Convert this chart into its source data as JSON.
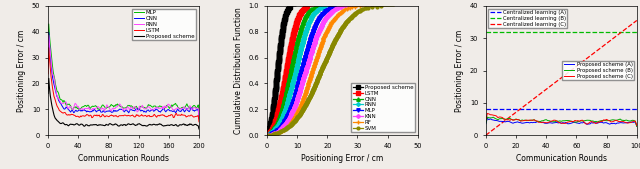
{
  "fig1": {
    "xlabel": "Communication Rounds",
    "ylabel": "Positioning Error / cm",
    "xlim": [
      0,
      200
    ],
    "ylim": [
      0,
      50
    ],
    "xticks": [
      0,
      40,
      80,
      120,
      160,
      200
    ],
    "yticks": [
      0,
      10,
      20,
      30,
      40,
      50
    ],
    "lines": [
      {
        "label": "MLP",
        "color": "#00bb00",
        "lw": 0.7
      },
      {
        "label": "CNN",
        "color": "#0000ff",
        "lw": 0.7
      },
      {
        "label": "RNN",
        "color": "#ff44ff",
        "lw": 0.7
      },
      {
        "label": "LSTM",
        "color": "#ff0000",
        "lw": 0.7
      },
      {
        "label": "Proposed scheme",
        "color": "#000000",
        "lw": 0.8
      }
    ],
    "convergence": [
      {
        "start": 48,
        "end": 11.0,
        "noise": 0.8,
        "decay": 0.15
      },
      {
        "start": 45,
        "end": 9.5,
        "noise": 0.7,
        "decay": 0.16
      },
      {
        "start": 42,
        "end": 10.5,
        "noise": 1.1,
        "decay": 0.14
      },
      {
        "start": 38,
        "end": 7.5,
        "noise": 0.6,
        "decay": 0.17
      },
      {
        "start": 26,
        "end": 4.0,
        "noise": 0.4,
        "decay": 0.22
      }
    ]
  },
  "fig2": {
    "xlabel": "Positioning Error / cm",
    "ylabel": "Cumulative Distribution Function",
    "xlim": [
      0,
      50
    ],
    "ylim": [
      0.0,
      1.0
    ],
    "xticks": [
      0,
      10,
      20,
      30,
      40,
      50
    ],
    "yticks": [
      0.0,
      0.2,
      0.4,
      0.6,
      0.8,
      1.0
    ],
    "lines": [
      {
        "label": "Proposed scheme",
        "color": "#000000",
        "marker": "s",
        "ms": 2.5,
        "lw": 0.9,
        "mean": 3.5,
        "std": 1.8
      },
      {
        "label": "LSTM",
        "color": "#ff0000",
        "marker": "s",
        "ms": 2.5,
        "lw": 0.9,
        "mean": 6.5,
        "std": 3.0
      },
      {
        "label": "CNN",
        "color": "#00aa00",
        "marker": "^",
        "ms": 2.5,
        "lw": 0.9,
        "mean": 8.0,
        "std": 3.5
      },
      {
        "label": "RNN",
        "color": "#00cccc",
        "marker": "D",
        "ms": 2.0,
        "lw": 0.9,
        "mean": 9.5,
        "std": 4.0
      },
      {
        "label": "MLP",
        "color": "#0000ff",
        "marker": "v",
        "ms": 2.5,
        "lw": 0.9,
        "mean": 11.5,
        "std": 4.5
      },
      {
        "label": "KNN",
        "color": "#ff44ff",
        "marker": "D",
        "ms": 2.0,
        "lw": 0.9,
        "mean": 13.0,
        "std": 5.0
      },
      {
        "label": "RF",
        "color": "#ff8800",
        "marker": "+",
        "ms": 2.5,
        "lw": 0.9,
        "mean": 15.0,
        "std": 5.5
      },
      {
        "label": "SVM",
        "color": "#888800",
        "marker": "o",
        "ms": 2.0,
        "lw": 0.9,
        "mean": 18.0,
        "std": 7.0
      }
    ]
  },
  "fig3": {
    "xlabel": "Communication Rounds",
    "ylabel": "Positioning Error / cm",
    "xlim": [
      0,
      100
    ],
    "ylim": [
      0,
      40
    ],
    "xticks": [
      0,
      20,
      40,
      60,
      80,
      100
    ],
    "yticks": [
      0,
      10,
      20,
      30,
      40
    ],
    "cent_a_val": 8.0,
    "cent_b_val": 32.0,
    "cent_c_slope": 0.355,
    "dashed_lines": [
      {
        "label": "Centralized learning (A)",
        "color": "#0000ff",
        "lw": 0.9
      },
      {
        "label": "Centralized learning (B)",
        "color": "#00bb00",
        "lw": 0.9
      },
      {
        "label": "Centralized learning (C)",
        "color": "#ff0000",
        "lw": 0.9
      }
    ],
    "solid_lines": [
      {
        "label": "Proposed scheme (A)",
        "color": "#0000ff",
        "lw": 0.7,
        "start": 5.5,
        "end": 3.8,
        "noise": 0.35,
        "decay": 0.12
      },
      {
        "label": "Proposed scheme (B)",
        "color": "#00aa00",
        "lw": 0.7,
        "start": 6.0,
        "end": 4.5,
        "noise": 0.35,
        "decay": 0.1
      },
      {
        "label": "Proposed scheme (C)",
        "color": "#ff0000",
        "lw": 0.7,
        "start": 7.0,
        "end": 4.2,
        "noise": 0.45,
        "decay": 0.08
      }
    ]
  }
}
